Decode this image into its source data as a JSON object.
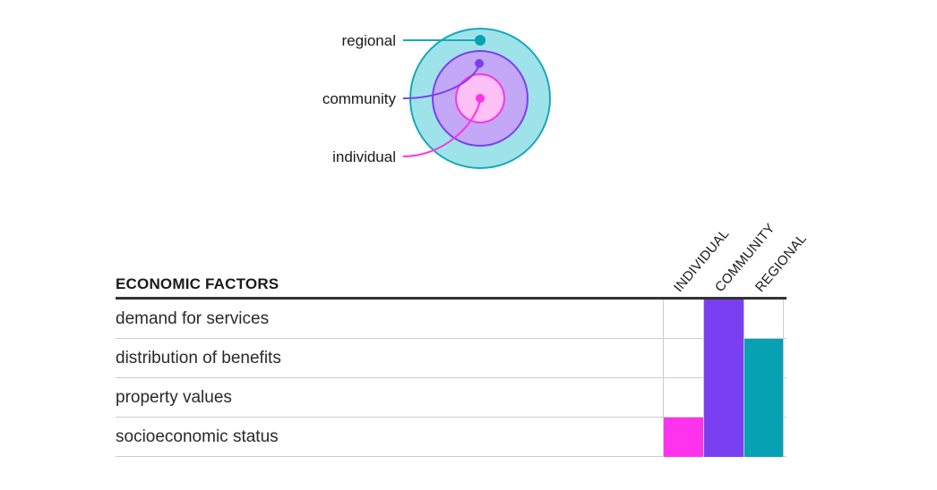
{
  "legend": {
    "levels": [
      {
        "key": "regional",
        "label": "regional",
        "color": "#18a8b8",
        "fill": "#9ee3ea"
      },
      {
        "key": "community",
        "label": "community",
        "color": "#7b3ff2",
        "fill": "#c2a8f7"
      },
      {
        "key": "individual",
        "label": "individual",
        "color": "#ff33e6",
        "fill": "#ffc0f5"
      }
    ]
  },
  "table": {
    "title": "ECONOMIC FACTORS",
    "columns": [
      {
        "key": "individual",
        "label": "INDIVIDUAL",
        "color": "#ff33ee"
      },
      {
        "key": "community",
        "label": "COMMUNITY",
        "color": "#7b3ff2"
      },
      {
        "key": "regional",
        "label": "REGIONAL",
        "color": "#06a2b4"
      }
    ],
    "rows": [
      {
        "label": "demand for services",
        "individual": false,
        "community": true,
        "regional": false
      },
      {
        "label": "distribution of benefits",
        "individual": false,
        "community": true,
        "regional": true
      },
      {
        "label": "property values",
        "individual": false,
        "community": true,
        "regional": true
      },
      {
        "label": "socioeconomic status",
        "individual": true,
        "community": true,
        "regional": true
      }
    ]
  }
}
